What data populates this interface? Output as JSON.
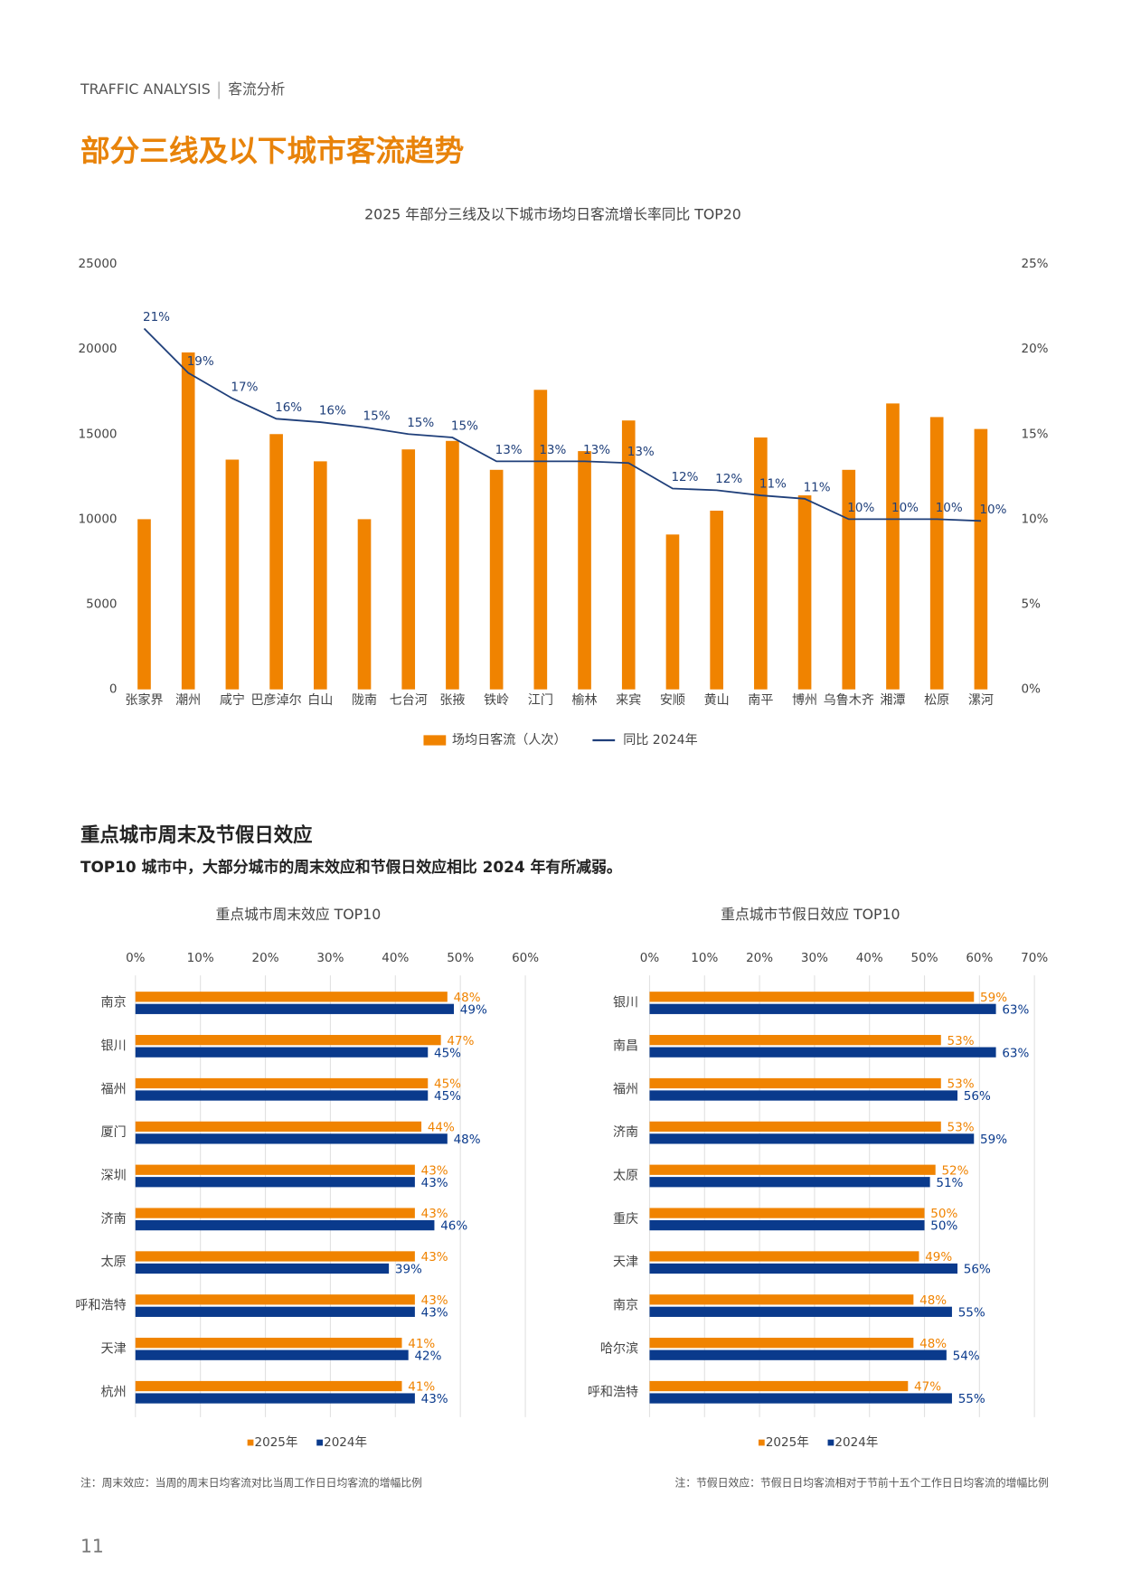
{
  "header": {
    "label": "TRAFFIC ANALYSIS",
    "section": "客流分析"
  },
  "title": "部分三线及以下城市客流趋势",
  "subheading": "重点城市周末及节假日效应",
  "summary": "TOP10 城市中，大部分城市的周末效应和节假日效应相比 2024 年有所减弱。",
  "chart_data": [
    {
      "type": "bar_line",
      "title": "2025 年部分三线及以下城市场均日客流增长率同比 TOP20",
      "categories": [
        "张家界",
        "潮州",
        "咸宁",
        "巴彦淖尔",
        "白山",
        "陇南",
        "七台河",
        "张掖",
        "铁岭",
        "江门",
        "榆林",
        "来宾",
        "安顺",
        "黄山",
        "南平",
        "博州",
        "乌鲁木齐",
        "湘潭",
        "松原",
        "漯河"
      ],
      "series": [
        {
          "name": "场均日客流（人次）",
          "type": "bar",
          "color": "#f08300",
          "values": [
            10000,
            19800,
            13500,
            15000,
            13400,
            10000,
            14100,
            14600,
            12900,
            17600,
            14000,
            15800,
            9100,
            10500,
            14800,
            11400,
            12900,
            16800,
            16000,
            15300
          ]
        },
        {
          "name": "同比 2024年",
          "type": "line",
          "axis": "y2",
          "color": "#1f3f7a",
          "values": [
            21.2,
            18.6,
            17.1,
            15.9,
            15.7,
            15.4,
            15.0,
            14.8,
            13.4,
            13.4,
            13.4,
            13.3,
            11.8,
            11.7,
            11.4,
            11.2,
            10.0,
            10.0,
            10.0,
            9.9
          ],
          "value_labels": [
            "21%",
            "19%",
            "17%",
            "16%",
            "16%",
            "15%",
            "15%",
            "15%",
            "13%",
            "13%",
            "13%",
            "13%",
            "12%",
            "12%",
            "11%",
            "11%",
            "10%",
            "10%",
            "10%",
            "10%"
          ]
        }
      ],
      "ylim": [
        0,
        25000
      ],
      "yticks": [
        0,
        5000,
        10000,
        15000,
        20000,
        25000
      ],
      "y2lim": [
        0,
        25
      ],
      "y2ticks": [
        {
          "value": 0,
          "label": "0%"
        },
        {
          "value": 5,
          "label": "5%"
        },
        {
          "value": 10,
          "label": "10%"
        },
        {
          "value": 15,
          "label": "15%"
        },
        {
          "value": 20,
          "label": "20%"
        },
        {
          "value": 25,
          "label": "25%"
        }
      ]
    },
    {
      "type": "hbar",
      "title": "重点城市周末效应 TOP10",
      "categories": [
        "南京",
        "银川",
        "福州",
        "厦门",
        "深圳",
        "济南",
        "太原",
        "呼和浩特",
        "天津",
        "杭州"
      ],
      "series": [
        {
          "name": "2025年",
          "color": "#f08300",
          "values": [
            48,
            47,
            45,
            44,
            43,
            43,
            43,
            43,
            41,
            41
          ],
          "value_labels": [
            "48%",
            "47%",
            "45%",
            "44%",
            "43%",
            "43%",
            "43%",
            "43%",
            "41%",
            "41%"
          ]
        },
        {
          "name": "2024年",
          "color": "#0a3a8c",
          "values": [
            49,
            45,
            45,
            48,
            43,
            46,
            39,
            43,
            42,
            43
          ],
          "value_labels": [
            "49%",
            "45%",
            "45%",
            "48%",
            "43%",
            "46%",
            "39%",
            "43%",
            "42%",
            "43%"
          ]
        }
      ],
      "xlim": [
        0,
        60
      ],
      "xticks": [
        {
          "value": 0,
          "label": "0%"
        },
        {
          "value": 10,
          "label": "10%"
        },
        {
          "value": 20,
          "label": "20%"
        },
        {
          "value": 30,
          "label": "30%"
        },
        {
          "value": 40,
          "label": "40%"
        },
        {
          "value": 50,
          "label": "50%"
        },
        {
          "value": 60,
          "label": "60%"
        }
      ],
      "grid": true
    },
    {
      "type": "hbar",
      "title": "重点城市节假日效应 TOP10",
      "categories": [
        "银川",
        "南昌",
        "福州",
        "济南",
        "太原",
        "重庆",
        "天津",
        "南京",
        "哈尔滨",
        "呼和浩特"
      ],
      "series": [
        {
          "name": "2025年",
          "color": "#f08300",
          "values": [
            59,
            53,
            53,
            53,
            52,
            50,
            49,
            48,
            48,
            47
          ],
          "value_labels": [
            "59%",
            "53%",
            "53%",
            "53%",
            "52%",
            "50%",
            "49%",
            "48%",
            "48%",
            "47%"
          ]
        },
        {
          "name": "2024年",
          "color": "#0a3a8c",
          "values": [
            63,
            63,
            56,
            59,
            51,
            50,
            56,
            55,
            54,
            55
          ],
          "value_labels": [
            "63%",
            "63%",
            "56%",
            "59%",
            "51%",
            "50%",
            "56%",
            "55%",
            "54%",
            "55%"
          ]
        }
      ],
      "xlim": [
        0,
        70
      ],
      "xticks": [
        {
          "value": 0,
          "label": "0%"
        },
        {
          "value": 10,
          "label": "10%"
        },
        {
          "value": 20,
          "label": "20%"
        },
        {
          "value": 30,
          "label": "30%"
        },
        {
          "value": 40,
          "label": "40%"
        },
        {
          "value": 50,
          "label": "50%"
        },
        {
          "value": 60,
          "label": "60%"
        },
        {
          "value": 70,
          "label": "70%"
        }
      ],
      "grid": true
    }
  ],
  "notes": [
    "注：周末效应：当周的周末日均客流对比当周工作日日均客流的增幅比例",
    "注：节假日效应：节假日日均客流相对于节前十五个工作日日均客流的增幅比例"
  ],
  "page_number": "11"
}
